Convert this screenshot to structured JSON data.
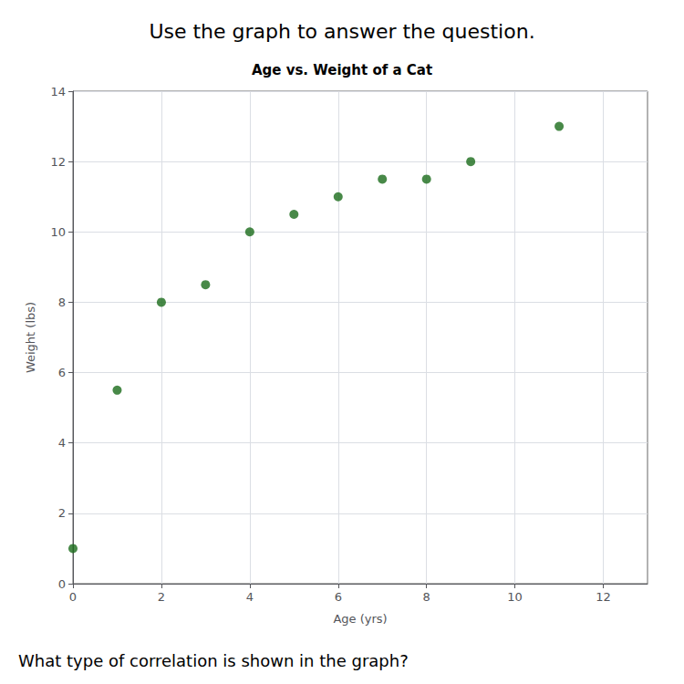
{
  "chart_data": {
    "type": "scatter",
    "title": "Age vs. Weight of a Cat",
    "subtitle": "Use the graph to answer the question.",
    "annotations": [
      "What type of correlation is shown in the graph?"
    ],
    "xlabel": "Age (yrs)",
    "ylabel": "Weight (lbs)",
    "x": [
      0,
      1,
      2,
      3,
      4,
      5,
      6,
      7,
      8,
      9,
      11
    ],
    "values": [
      1,
      5.5,
      8,
      8.5,
      10,
      10.5,
      11,
      11.5,
      11.5,
      12,
      13
    ],
    "color": "#1a6b1a",
    "xlim": [
      0,
      13
    ],
    "ylim": [
      0,
      14
    ],
    "xticks": [
      0,
      2,
      4,
      6,
      8,
      10,
      12
    ],
    "yticks": [
      0,
      2,
      4,
      6,
      8,
      10,
      12,
      14
    ],
    "grid": true
  }
}
